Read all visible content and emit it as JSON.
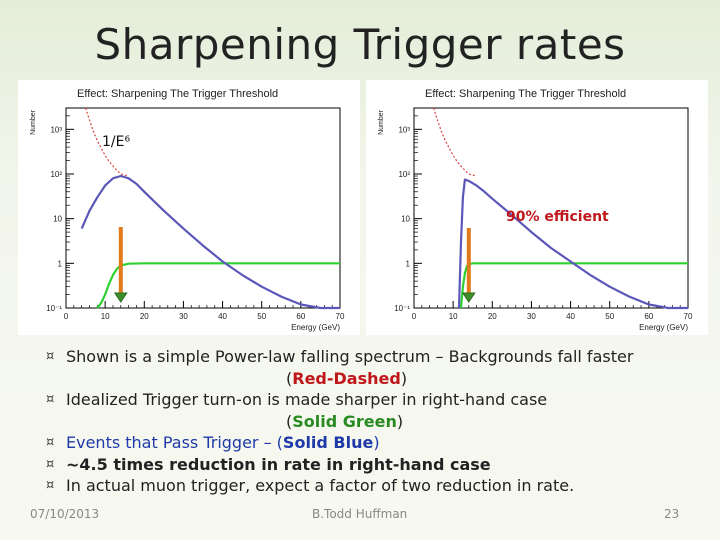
{
  "slide": {
    "title": "Sharpening Trigger rates",
    "bullets": {
      "b1_text": "Shown is a simple Power-law falling spectrum – Backgrounds fall faster",
      "b1_open": "(",
      "b1_em": "Red-Dashed",
      "b1_close": ")",
      "b2_text": "Idealized Trigger turn-on is made sharper in right-hand case",
      "b2_open": "(",
      "b2_em": "Solid Green",
      "b2_close": ")",
      "b3_text": "Events that Pass Trigger – (",
      "b3_em": "Solid Blue",
      "b3_close": ")",
      "b4_text": "~4.5 times reduction in rate in right-hand case",
      "b5_text": "In actual muon trigger, expect a factor of two reduction in rate."
    },
    "footer": {
      "date": "07/10/2013",
      "author": "B.Todd Huffman",
      "page": "23"
    },
    "colors": {
      "background": "#f3f6ec",
      "blue": "#1f3aa8",
      "red": "#c0171b",
      "green": "#2a8a22",
      "arrow": "#e07a1c"
    }
  },
  "chart_data": [
    {
      "type": "line",
      "title": "Effect: Sharpening The Trigger Threshold",
      "xlabel": "Energy (GeV)",
      "ylabel": "Number",
      "xlim": [
        0,
        70
      ],
      "ylim": [
        0.1,
        3000
      ],
      "yscale": "log",
      "xticks": [
        "0",
        "10",
        "20",
        "30",
        "40",
        "50",
        "60",
        "70"
      ],
      "yticks": [
        "10⁻¹",
        "1",
        "10",
        "10²",
        "10³"
      ],
      "annotation": "1/E⁶",
      "arrow_x": 14,
      "series": [
        {
          "name": "",
          "style": "red-dashed",
          "x": [
            5,
            6,
            7,
            8,
            9,
            10,
            11,
            12,
            13,
            14,
            16
          ],
          "y": [
            3000,
            1600,
            900,
            560,
            380,
            260,
            190,
            150,
            120,
            100,
            90
          ]
        },
        {
          "name": "",
          "style": "green-solid",
          "x": [
            8,
            9,
            10,
            11,
            12,
            13,
            14,
            16,
            20,
            30,
            40,
            50,
            60,
            70
          ],
          "y": [
            0.1,
            0.13,
            0.2,
            0.35,
            0.55,
            0.75,
            0.9,
            0.98,
            1,
            1,
            1,
            1,
            1,
            1
          ]
        },
        {
          "name": "",
          "style": "blue-solid",
          "x": [
            4,
            6,
            8,
            10,
            12,
            14,
            16,
            18,
            20,
            25,
            30,
            35,
            40,
            45,
            50,
            55,
            60,
            65,
            70
          ],
          "y": [
            6,
            15,
            30,
            55,
            80,
            90,
            80,
            60,
            40,
            15,
            6,
            2.5,
            1.1,
            0.55,
            0.3,
            0.18,
            0.12,
            0.085,
            0.07
          ]
        }
      ]
    },
    {
      "type": "line",
      "title": "Effect: Sharpening The Trigger Threshold",
      "xlabel": "Energy (GeV)",
      "ylabel": "Number",
      "xlim": [
        0,
        70
      ],
      "ylim": [
        0.1,
        3000
      ],
      "yscale": "log",
      "xticks": [
        "0",
        "10",
        "20",
        "30",
        "40",
        "50",
        "60",
        "70"
      ],
      "yticks": [
        "10⁻¹",
        "1",
        "10",
        "10²",
        "10³"
      ],
      "annotation": "90% efficient",
      "arrow_x": 14,
      "series": [
        {
          "name": "",
          "style": "red-dashed",
          "x": [
            5,
            6,
            7,
            8,
            9,
            10,
            11,
            12,
            13,
            14,
            16
          ],
          "y": [
            3000,
            1600,
            900,
            560,
            380,
            260,
            190,
            150,
            120,
            100,
            90
          ]
        },
        {
          "name": "",
          "style": "green-solid",
          "x": [
            12,
            12.5,
            13,
            13.5,
            14,
            15,
            20,
            30,
            40,
            50,
            60,
            70
          ],
          "y": [
            0.1,
            0.3,
            0.6,
            0.85,
            0.95,
            1,
            1,
            1,
            1,
            1,
            1,
            1
          ]
        },
        {
          "name": "",
          "style": "blue-solid",
          "x": [
            11.5,
            12,
            12.5,
            13,
            14,
            16,
            18,
            20,
            25,
            30,
            35,
            40,
            45,
            50,
            55,
            60,
            65,
            70
          ],
          "y": [
            0.1,
            3,
            30,
            75,
            70,
            55,
            40,
            28,
            12,
            5,
            2.2,
            1.1,
            0.55,
            0.3,
            0.18,
            0.12,
            0.085,
            0.07
          ]
        }
      ]
    }
  ]
}
